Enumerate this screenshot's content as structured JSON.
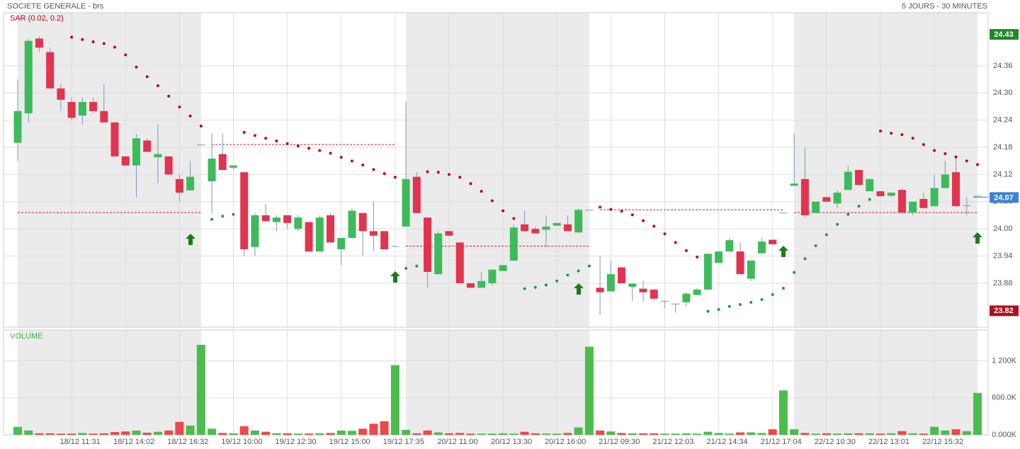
{
  "chart_data": {
    "type": "candlestick",
    "title": "SOCIETE GENERALE - brs",
    "subtitle": "5 JOURS - 30 MINUTES",
    "indicator_label": "SAR (0.02, 0.2)",
    "volume_label": "VOLUME",
    "categories": [
      null,
      null,
      null,
      null,
      null,
      "18/12 11:31",
      null,
      null,
      null,
      null,
      "18/12 14:02",
      null,
      null,
      null,
      null,
      "18/12 16:32",
      null,
      null,
      null,
      null,
      "19/12 10:00",
      null,
      null,
      null,
      null,
      "19/12 12:30",
      null,
      null,
      null,
      null,
      "19/12 15:00",
      null,
      null,
      null,
      null,
      "19/12 17:35",
      null,
      null,
      null,
      null,
      "20/12 11:00",
      null,
      null,
      null,
      null,
      "20/12 13:30",
      null,
      null,
      null,
      null,
      "20/12 16:00",
      null,
      null,
      null,
      null,
      "21/12 09:30",
      null,
      null,
      null,
      null,
      "21/12 12:03",
      null,
      null,
      null,
      null,
      "21/12 14:34",
      null,
      null,
      null,
      null,
      "21/12 17:04",
      null,
      null,
      null,
      null,
      "22/12 10:30",
      null,
      null,
      null,
      null,
      "22/12 13:01",
      null,
      null,
      null,
      null,
      "22/12 15:32",
      null,
      null,
      null,
      null
    ],
    "open": [
      24.19,
      24.255,
      24.42,
      24.39,
      24.31,
      24.28,
      24.25,
      24.28,
      24.26,
      24.235,
      24.16,
      24.14,
      24.195,
      24.158,
      24.16,
      24.11,
      24.085,
      24.186,
      24.105,
      24.165,
      24.135,
      24.125,
      23.96,
      24.03,
      24.015,
      24.03,
      24.0,
      24.015,
      23.95,
      24.03,
      23.955,
      23.98,
      24.035,
      23.995,
      23.995,
      23.962,
      24.005,
      24.115,
      24.025,
      23.9,
      23.995,
      23.97,
      23.88,
      23.87,
      23.88,
      23.907,
      23.93,
      24.01,
      24.0,
      23.998,
      24.007,
      24.01,
      23.992,
      24.042,
      23.87,
      23.862,
      23.915,
      23.872,
      23.868,
      23.866,
      23.841,
      23.835,
      23.838,
      23.854,
      23.866,
      23.925,
      23.95,
      23.95,
      23.89,
      23.946,
      23.976,
      24.036,
      24.095,
      24.11,
      24.035,
      24.07,
      24.056,
      24.086,
      24.13,
      24.083,
      24.083,
      24.073,
      24.086,
      24.036,
      24.066,
      24.05,
      24.09,
      24.125,
      24.052,
      24.073
    ],
    "high": [
      24.33,
      24.42,
      24.425,
      24.4,
      24.32,
      24.29,
      24.29,
      24.29,
      24.32,
      24.235,
      24.16,
      24.21,
      24.2,
      24.23,
      24.16,
      24.12,
      24.15,
      24.186,
      24.21,
      24.21,
      24.14,
      24.125,
      24.035,
      24.055,
      24.03,
      24.03,
      24.03,
      24.015,
      24.03,
      24.035,
      23.98,
      24.045,
      24.035,
      24.06,
      23.995,
      23.962,
      24.28,
      24.125,
      24.025,
      23.995,
      23.995,
      23.97,
      23.88,
      23.905,
      23.91,
      23.92,
      24.01,
      24.04,
      24.005,
      24.03,
      24.013,
      24.03,
      24.045,
      24.042,
      23.94,
      23.93,
      23.915,
      23.88,
      23.885,
      23.866,
      23.841,
      23.835,
      23.86,
      23.87,
      23.945,
      23.95,
      23.98,
      23.97,
      23.93,
      23.98,
      23.976,
      24.036,
      24.21,
      24.18,
      24.06,
      24.07,
      24.085,
      24.14,
      24.13,
      24.11,
      24.083,
      24.08,
      24.09,
      24.06,
      24.08,
      24.12,
      24.15,
      24.16,
      24.07,
      24.073
    ],
    "low": [
      24.15,
      24.235,
      24.39,
      24.31,
      24.26,
      24.24,
      24.23,
      24.255,
      24.235,
      24.16,
      24.14,
      24.07,
      24.17,
      24.1,
      24.12,
      24.06,
      24.085,
      24.186,
      24.035,
      24.13,
      24.13,
      23.94,
      23.94,
      24.015,
      23.995,
      24.0,
      23.995,
      23.95,
      23.95,
      23.97,
      23.92,
      23.98,
      23.94,
      23.95,
      23.955,
      23.962,
      24.005,
      24.035,
      23.87,
      23.9,
      23.985,
      23.88,
      23.87,
      23.87,
      23.875,
      23.907,
      23.93,
      23.995,
      23.99,
      23.96,
      24.007,
      23.995,
      23.992,
      24.042,
      23.81,
      23.862,
      23.88,
      23.84,
      23.84,
      23.84,
      23.825,
      23.815,
      23.83,
      23.854,
      23.866,
      23.925,
      23.95,
      23.9,
      23.885,
      23.946,
      23.966,
      24.036,
      24.095,
      24.025,
      24.035,
      24.06,
      24.045,
      24.086,
      24.095,
      24.083,
      24.072,
      24.07,
      24.036,
      24.03,
      24.046,
      24.05,
      24.09,
      24.05,
      24.03,
      24.073
    ],
    "close": [
      24.26,
      24.415,
      24.4,
      24.31,
      24.285,
      24.245,
      24.28,
      24.26,
      24.235,
      24.16,
      24.14,
      24.2,
      24.17,
      24.165,
      24.12,
      24.08,
      24.115,
      24.186,
      24.155,
      24.13,
      24.14,
      23.955,
      24.03,
      24.017,
      24.025,
      24.013,
      24.025,
      23.95,
      24.025,
      23.97,
      23.98,
      24.04,
      23.995,
      23.985,
      23.955,
      23.962,
      24.11,
      24.035,
      23.905,
      23.99,
      23.985,
      23.88,
      23.87,
      23.885,
      23.91,
      23.92,
      24.003,
      23.995,
      23.99,
      24.005,
      24.013,
      23.995,
      24.042,
      24.042,
      23.86,
      23.9,
      23.88,
      23.879,
      23.86,
      23.846,
      23.841,
      23.835,
      23.857,
      23.866,
      23.945,
      23.95,
      23.975,
      23.9,
      23.93,
      23.972,
      23.966,
      24.036,
      24.1,
      24.03,
      24.06,
      24.06,
      24.08,
      24.126,
      24.097,
      24.11,
      24.072,
      24.08,
      24.036,
      24.06,
      24.046,
      24.09,
      24.12,
      24.05,
      24.052,
      24.073
    ],
    "sar": [
      null,
      null,
      null,
      null,
      null,
      24.423,
      24.418,
      24.413,
      24.409,
      24.401,
      24.384,
      24.357,
      24.336,
      24.316,
      24.293,
      24.269,
      24.249,
      24.227,
      24.021,
      24.028,
      24.032,
      24.213,
      24.206,
      24.2,
      24.194,
      24.188,
      24.183,
      24.178,
      24.173,
      24.167,
      24.158,
      24.15,
      24.141,
      24.131,
      24.122,
      24.114,
      23.913,
      23.918,
      24.126,
      24.125,
      24.12,
      24.114,
      24.1,
      24.083,
      24.062,
      24.04,
      24.023,
      23.868,
      23.871,
      23.876,
      23.885,
      23.898,
      23.907,
      23.918,
      24.048,
      24.043,
      24.039,
      24.031,
      24.018,
      24.006,
      23.989,
      23.97,
      23.952,
      23.938,
      23.818,
      23.822,
      23.829,
      23.833,
      23.838,
      23.844,
      23.855,
      23.869,
      23.904,
      23.934,
      23.963,
      23.987,
      24.01,
      24.032,
      24.05,
      24.065,
      24.216,
      24.211,
      24.208,
      24.2,
      24.186,
      24.173,
      24.166,
      24.159,
      24.15,
      24.142
    ],
    "volume": [
      130000,
      70000,
      25000,
      25000,
      20000,
      20000,
      30000,
      20000,
      25000,
      45000,
      55000,
      70000,
      35000,
      50000,
      70000,
      210000,
      150000,
      1460000,
      100000,
      30000,
      25000,
      140000,
      70000,
      50000,
      25000,
      25000,
      20000,
      20000,
      25000,
      30000,
      70000,
      65000,
      100000,
      180000,
      220000,
      1130000,
      80000,
      25000,
      70000,
      40000,
      25000,
      30000,
      20000,
      20000,
      20000,
      25000,
      20000,
      50000,
      25000,
      20000,
      20000,
      30000,
      120000,
      1430000,
      70000,
      55000,
      30000,
      25000,
      25000,
      25000,
      20000,
      20000,
      25000,
      20000,
      50000,
      30000,
      20000,
      40000,
      40000,
      30000,
      90000,
      720000,
      90000,
      30000,
      20000,
      25000,
      20000,
      25000,
      25000,
      25000,
      20000,
      25000,
      60000,
      25000,
      20000,
      130000,
      70000,
      90000,
      60000,
      680000
    ],
    "previous_closes": [
      24.036,
      24.186,
      23.962,
      24.042,
      24.036
    ],
    "high_label": 24.43,
    "last_label": 24.07,
    "low_label": 23.82,
    "ylim": [
      23.783,
      24.477
    ],
    "yticks": [
      23.88,
      23.94,
      {
        "value": 24,
        "label": "24.00"
      },
      24.06,
      24.12,
      24.18,
      24.24,
      {
        "value": 24.3,
        "label": "24.30"
      },
      24.36
    ],
    "y2lim": [
      0,
      1700000
    ],
    "y2ticks": [
      {
        "value": 0,
        "label": "0.000K"
      },
      {
        "value": 600000,
        "label": "600.0K"
      },
      {
        "value": 1200000,
        "label": "1 200K"
      }
    ],
    "colors": {
      "up": "#3dbb5b",
      "down": "#e2334f",
      "wick": "#7b98b8",
      "sar_up": "#1f9a2e",
      "sar_down": "#c00010",
      "vol_up": "#4cbd4c",
      "vol_down": "#ee4848",
      "high": "#1e8a2a",
      "last": "#3b82d6",
      "low": "#b0101e"
    },
    "grid": true
  }
}
